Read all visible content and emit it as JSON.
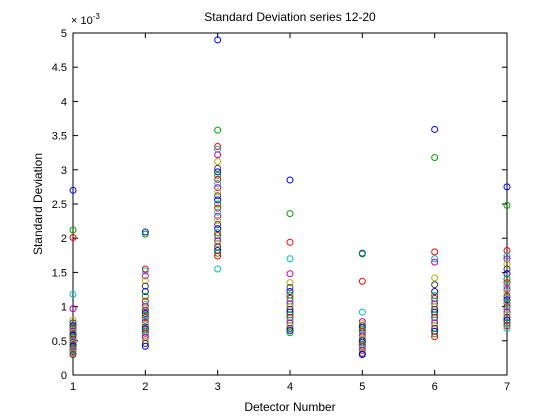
{
  "chart_data": {
    "type": "scatter",
    "title": "Standard Deviation series 12-20",
    "xlabel": "Detector Number",
    "ylabel": "Standard Deviation",
    "exponent_label": "× 10",
    "exponent_value": "-3",
    "xlim": [
      1,
      7
    ],
    "ylim": [
      0,
      5
    ],
    "x_ticks": [
      1,
      2,
      3,
      4,
      5,
      6,
      7
    ],
    "x_tick_labels": [
      "1",
      "2",
      "3",
      "4",
      "5",
      "6",
      "7"
    ],
    "y_ticks": [
      0,
      0.5,
      1,
      1.5,
      2,
      2.5,
      3,
      3.5,
      4,
      4.5,
      5
    ],
    "y_tick_labels": [
      "0",
      "0.5",
      "1",
      "1.5",
      "2",
      "2.5",
      "3",
      "3.5",
      "4",
      "4.5",
      "5"
    ],
    "grid": false,
    "legend": "none",
    "colors": [
      "#0000ff",
      "#00a000",
      "#ff0000",
      "#00c0c0",
      "#c000c0",
      "#b0b000",
      "#404040"
    ],
    "series": [
      {
        "x": 1,
        "values": [
          2.7,
          2.12,
          2.01,
          1.18,
          0.97,
          0.8,
          0.76,
          0.72,
          0.7,
          0.68,
          0.66,
          0.64,
          0.62,
          0.6,
          0.58,
          0.55,
          0.52,
          0.5,
          0.48,
          0.46,
          0.44,
          0.42,
          0.4,
          0.38,
          0.36,
          0.34,
          0.32,
          0.3
        ]
      },
      {
        "x": 2,
        "values": [
          2.09,
          2.06,
          1.55,
          1.52,
          1.45,
          1.38,
          1.3,
          1.22,
          1.15,
          1.08,
          1.03,
          1.0,
          0.97,
          0.94,
          0.9,
          0.87,
          0.84,
          0.8,
          0.77,
          0.74,
          0.7,
          0.67,
          0.64,
          0.61,
          0.58,
          0.55,
          0.5,
          0.46,
          0.42
        ]
      },
      {
        "x": 3,
        "values": [
          4.9,
          3.58,
          3.34,
          3.3,
          3.22,
          3.12,
          3.02,
          2.97,
          2.92,
          2.86,
          2.8,
          2.74,
          2.68,
          2.62,
          2.56,
          2.5,
          2.44,
          2.38,
          2.32,
          2.26,
          2.2,
          2.14,
          2.08,
          2.04,
          2.0,
          1.96,
          1.92,
          1.87,
          1.82,
          1.78,
          1.74,
          1.55
        ]
      },
      {
        "x": 4,
        "values": [
          2.85,
          2.36,
          1.94,
          1.7,
          1.48,
          1.35,
          1.28,
          1.22,
          1.17,
          1.12,
          1.08,
          1.04,
          1.0,
          0.96,
          0.92,
          0.88,
          0.84,
          0.8,
          0.76,
          0.72,
          0.68,
          0.65,
          0.62
        ]
      },
      {
        "x": 5,
        "values": [
          1.78,
          1.77,
          1.37,
          0.92,
          0.78,
          0.75,
          0.72,
          0.69,
          0.66,
          0.63,
          0.6,
          0.57,
          0.54,
          0.51,
          0.48,
          0.45,
          0.42,
          0.39,
          0.36,
          0.33,
          0.31,
          0.3
        ]
      },
      {
        "x": 6,
        "values": [
          3.59,
          3.18,
          1.8,
          1.7,
          1.65,
          1.42,
          1.32,
          1.22,
          1.16,
          1.12,
          1.08,
          1.04,
          1.0,
          0.96,
          0.92,
          0.88,
          0.84,
          0.8,
          0.76,
          0.72,
          0.68,
          0.64,
          0.6,
          0.56
        ]
      },
      {
        "x": 7,
        "values": [
          2.75,
          2.48,
          1.82,
          1.74,
          1.7,
          1.62,
          1.55,
          1.48,
          1.4,
          1.35,
          1.3,
          1.25,
          1.2,
          1.15,
          1.1,
          1.05,
          1.0,
          0.96,
          0.92,
          0.88,
          0.84,
          0.8,
          0.76,
          0.72,
          0.68
        ]
      }
    ]
  }
}
